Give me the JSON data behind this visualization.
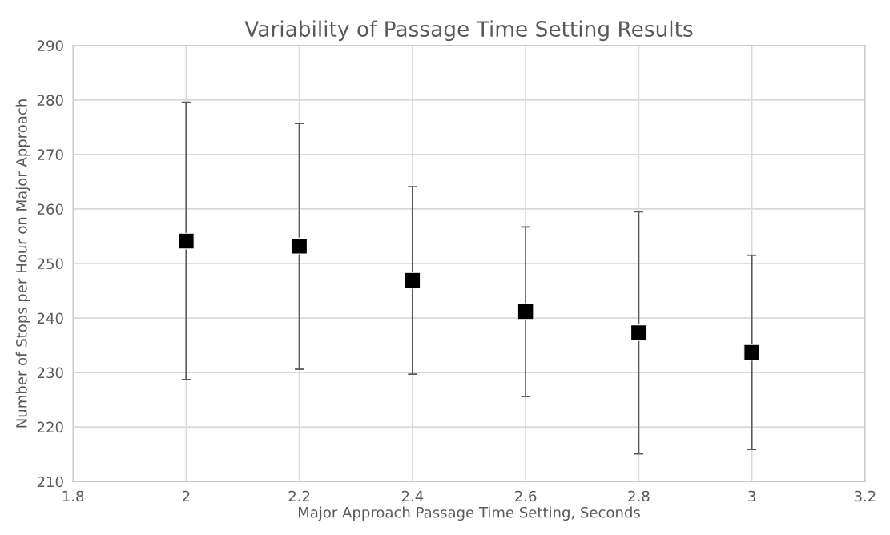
{
  "chart_data": {
    "type": "scatter",
    "title": "Variability of Passage Time Setting Results",
    "xlabel": "Major Approach Passage Time Setting, Seconds",
    "ylabel": "Number of Stops per Hour on Major Approach",
    "x": [
      2,
      2.2,
      2.4,
      2.6,
      2.8,
      3
    ],
    "series": [
      {
        "color": "#000000",
        "values": [
          254.1,
          253.2,
          246.9,
          241.2,
          237.3,
          233.7
        ],
        "errors": [
          [
            228.7,
            279.6
          ],
          [
            230.6,
            275.7
          ],
          [
            229.7,
            264.1
          ],
          [
            225.6,
            256.7
          ],
          [
            215.1,
            259.5
          ],
          [
            215.9,
            251.5
          ]
        ]
      }
    ],
    "xlim": [
      1.8,
      3.2
    ],
    "xticks": [
      1.8,
      2,
      2.2,
      2.4,
      2.6,
      2.8,
      3,
      3.2
    ],
    "ylim": [
      210,
      290
    ],
    "yticks": [
      210,
      220,
      230,
      240,
      250,
      260,
      270,
      280,
      290
    ],
    "grid": true,
    "marker": "square"
  }
}
